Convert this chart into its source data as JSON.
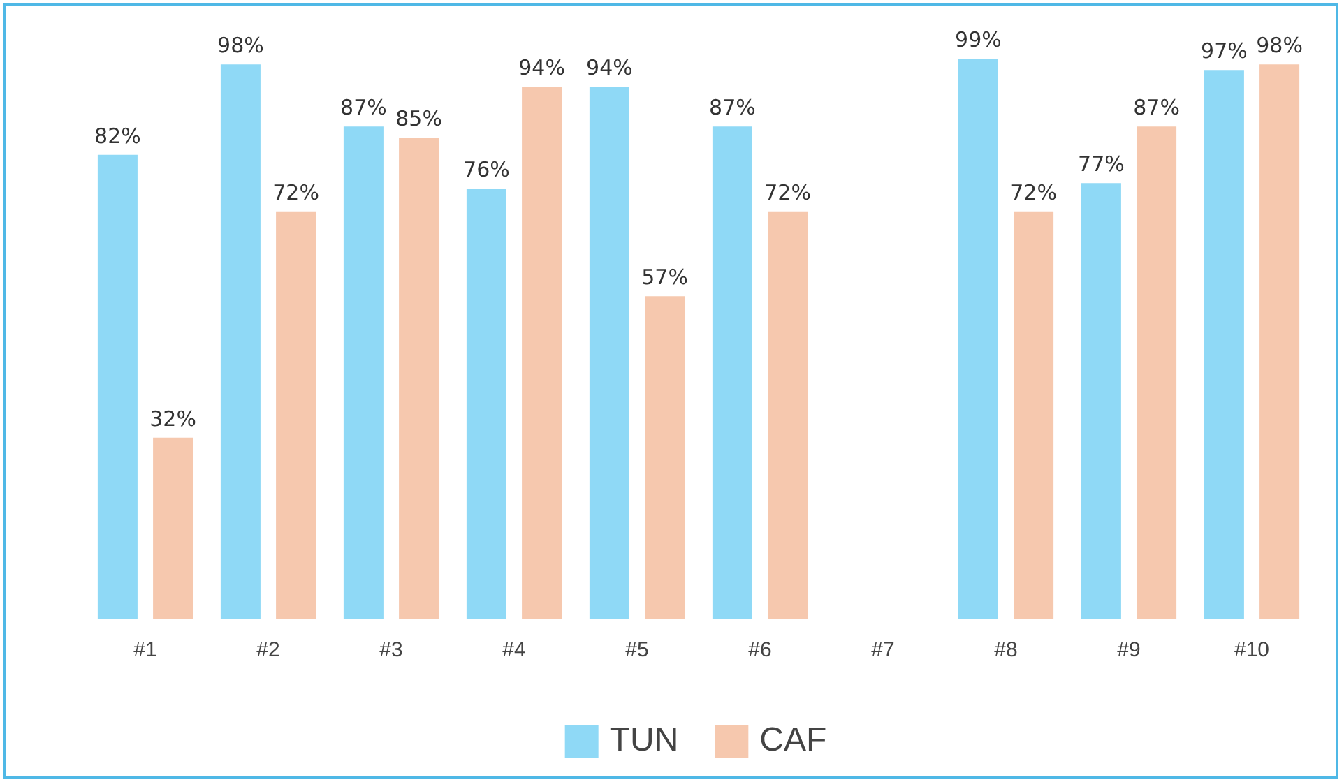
{
  "chart_data": {
    "type": "bar",
    "categories": [
      "#1",
      "#2",
      "#3",
      "#4",
      "#5",
      "#6",
      "#7",
      "#8",
      "#9",
      "#10"
    ],
    "series": [
      {
        "name": "TUN",
        "color": "#8fd9f6",
        "values": [
          82,
          98,
          87,
          76,
          94,
          87,
          null,
          99,
          77,
          97
        ],
        "value_labels": [
          "82%",
          "98%",
          "87%",
          "76%",
          "94%",
          "87%",
          null,
          "99%",
          "77%",
          "97%"
        ]
      },
      {
        "name": "CAF",
        "color": "#f6c8ae",
        "values": [
          32,
          72,
          85,
          94,
          57,
          72,
          null,
          72,
          87,
          98
        ],
        "value_labels": [
          "32%",
          "72%",
          "85%",
          "94%",
          "57%",
          "72%",
          null,
          "72%",
          "87%",
          "98%"
        ]
      }
    ],
    "tick_labels": "x",
    "grid": false,
    "legend": "bottom"
  }
}
